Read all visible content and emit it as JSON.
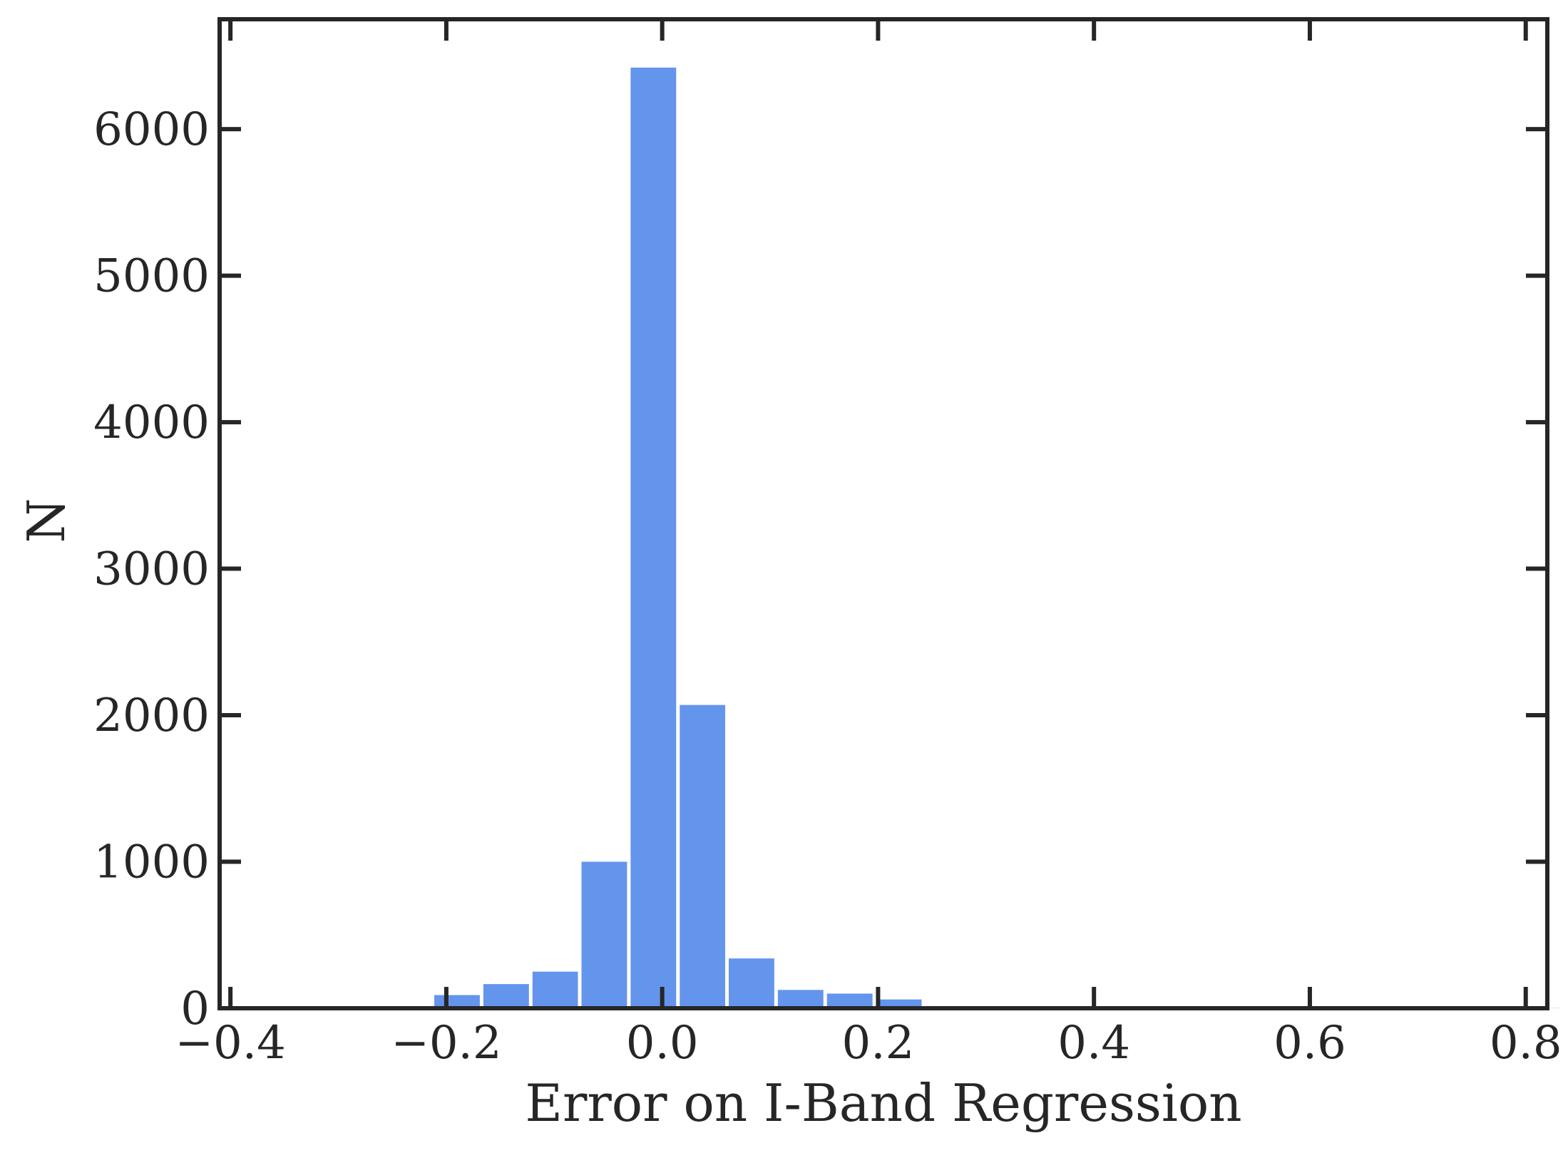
{
  "chart_data": {
    "type": "bar",
    "title": "",
    "xlabel": "Error on I-Band Regression",
    "ylabel": "N",
    "xlim": [
      -0.41,
      0.82
    ],
    "ylim": [
      0,
      6750
    ],
    "x_ticks": [
      -0.4,
      -0.2,
      0.0,
      0.2,
      0.4,
      0.6,
      0.8
    ],
    "x_tick_labels": [
      "−0.4",
      "−0.2",
      "0.0",
      "0.2",
      "0.4",
      "0.6",
      "0.8"
    ],
    "y_ticks": [
      0,
      1000,
      2000,
      3000,
      4000,
      5000,
      6000
    ],
    "y_tick_labels": [
      "0",
      "1000",
      "2000",
      "3000",
      "4000",
      "5000",
      "6000"
    ],
    "grid": false,
    "bar_color": "#6495ED",
    "bins": [
      {
        "x_start": -0.2128,
        "x_end": -0.1673,
        "count": 90
      },
      {
        "x_start": -0.1673,
        "x_end": -0.1218,
        "count": 165
      },
      {
        "x_start": -0.1218,
        "x_end": -0.0764,
        "count": 250
      },
      {
        "x_start": -0.0764,
        "x_end": -0.0309,
        "count": 1000
      },
      {
        "x_start": -0.0309,
        "x_end": 0.0146,
        "count": 6420
      },
      {
        "x_start": 0.0146,
        "x_end": 0.06,
        "count": 2070
      },
      {
        "x_start": 0.06,
        "x_end": 0.1055,
        "count": 340
      },
      {
        "x_start": 0.1055,
        "x_end": 0.151,
        "count": 125
      },
      {
        "x_start": 0.151,
        "x_end": 0.1965,
        "count": 100
      },
      {
        "x_start": 0.1965,
        "x_end": 0.242,
        "count": 60
      },
      {
        "x_start": 0.242,
        "x_end": 0.2874,
        "count": 15
      },
      {
        "x_start": 0.2874,
        "x_end": 0.3329,
        "count": 5
      },
      {
        "x_start": 0.3329,
        "x_end": 0.3784,
        "count": 2
      },
      {
        "x_start": 0.3784,
        "x_end": 0.4238,
        "count": 1
      },
      {
        "x_start": 0.4238,
        "x_end": 0.4693,
        "count": 1
      },
      {
        "x_start": 0.4693,
        "x_end": 0.5148,
        "count": 1
      },
      {
        "x_start": 0.5148,
        "x_end": 0.5603,
        "count": 1
      },
      {
        "x_start": 0.5603,
        "x_end": 0.6057,
        "count": 0
      },
      {
        "x_start": 0.6057,
        "x_end": 0.6512,
        "count": 0
      },
      {
        "x_start": 0.6512,
        "x_end": 0.6967,
        "count": 0
      },
      {
        "x_start": 0.6967,
        "x_end": 0.7422,
        "count": 0
      },
      {
        "x_start": 0.7422,
        "x_end": 0.7876,
        "count": 0
      },
      {
        "x_start": 0.7876,
        "x_end": 0.8331,
        "count": 1
      }
    ]
  }
}
